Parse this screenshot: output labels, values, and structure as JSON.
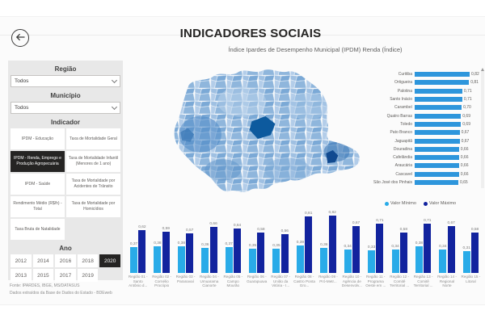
{
  "header": {
    "title": "INDICADORES SOCIAIS",
    "subtitle": "Índice Ipardes de Desempenho Municipal (IPDM) Renda (Índice)"
  },
  "sidebar": {
    "region_label": "Região",
    "region_value": "Todos",
    "municipality_label": "Município",
    "municipality_value": "Todos",
    "indicator_label": "Indicador",
    "indicators": [
      {
        "label": "IPDM - Educação",
        "selected": false
      },
      {
        "label": "Taxa de Mortalidade Geral",
        "selected": false
      },
      {
        "label": "IPDM - Renda, Emprego e Produção Agropecuária",
        "selected": true
      },
      {
        "label": "Taxa de Mortalidade Infantil (Menores de 1 ano)",
        "selected": false
      },
      {
        "label": "IPDM - Saúde",
        "selected": false
      },
      {
        "label": "Taxa de Mortalidade por Acidentes de Trânsito",
        "selected": false
      },
      {
        "label": "Rendimento Médio (R$/h) - Total",
        "selected": false
      },
      {
        "label": "Taxa de Mortalidade por Homicídios",
        "selected": false
      },
      {
        "label": "Taxa Bruta de Natalidade",
        "selected": false
      }
    ],
    "year_label": "Ano",
    "years": [
      [
        "2012",
        "2014",
        "2016",
        "2018",
        "2020"
      ],
      [
        "2013",
        "2015",
        "2017",
        "2019"
      ]
    ],
    "selected_year": "2020",
    "footnote1": "Fonte: IPARDES, IBGE, MS/DATASUS",
    "footnote2": "Dados extraídos da Base de Dados do Estado - BDEweb"
  },
  "colors": {
    "city_bar": "#2E96DC",
    "min_bar": "#29ABE8",
    "max_bar": "#12239E",
    "selected_button": "#252423"
  },
  "chart_data": [
    {
      "type": "bar",
      "orientation": "horizontal",
      "title": "Índice Ipardes de Desempenho Municipal (IPDM) Renda (Índice)",
      "categories": [
        "Curitiba",
        "Ortigueira",
        "Palotina",
        "Santo Inácio",
        "Carambeí",
        "Quatro Barras",
        "Toledo",
        "Pato Branco",
        "Jaguapitã",
        "Douradina",
        "Cafelândia",
        "Araucária",
        "Cascavel",
        "São José dos Pinhais"
      ],
      "values": [
        0.82,
        0.81,
        0.71,
        0.71,
        0.7,
        0.69,
        0.69,
        0.67,
        0.67,
        0.66,
        0.66,
        0.66,
        0.66,
        0.65
      ],
      "xlim": [
        0,
        0.9
      ],
      "grid": false,
      "data_labels": true,
      "color": "#2E96DC"
    },
    {
      "type": "bar",
      "orientation": "vertical",
      "categories": [
        "Região 01 - Santo Antônio d...",
        "Região 02 - Cornélio Procópio",
        "Região 03 - Paranavaí",
        "Região 04 - Umuarama Cianorte",
        "Região 05 - Campo Mourão",
        "Região 06 - Guarapuava",
        "Região 07 - União da Vitória - I...",
        "Região 08 - Castro Ponta Gro...",
        "Região 09 - Pró-Metr...",
        "Região 10 - Agência de Desenvolv...",
        "Região 11 - Programa Oeste em ...",
        "Região 12 - Comitê Territorial ...",
        "Região 13 - Comitê Territorial ...",
        "Região 14 - Regional Norte",
        "Região 15 - Litoral"
      ],
      "series": [
        {
          "name": "Valor Mínimo",
          "color": "#29ABE8",
          "values": [
            0.37,
            0.38,
            0.38,
            0.36,
            0.37,
            0.35,
            0.35,
            0.39,
            0.36,
            0.34,
            0.33,
            0.34,
            0.38,
            0.34,
            0.31
          ]
        },
        {
          "name": "Valor Máximo",
          "color": "#12239E",
          "values": [
            0.62,
            0.59,
            0.57,
            0.66,
            0.64,
            0.58,
            0.56,
            0.81,
            0.82,
            0.67,
            0.71,
            0.58,
            0.71,
            0.67,
            0.58
          ]
        }
      ],
      "ylim": [
        0,
        0.9
      ],
      "grid": false,
      "data_labels": true,
      "legend_position": "top-right"
    }
  ],
  "map": {
    "name": "Mapa coroplético do Paraná por município",
    "shades": [
      "#b3cde9",
      "#9fc0e2",
      "#8fb6dc",
      "#7ba9d6",
      "#5b92c8",
      "#4c88c6",
      "#3d7ab8",
      "#0d5a9e",
      "#114a90"
    ]
  }
}
